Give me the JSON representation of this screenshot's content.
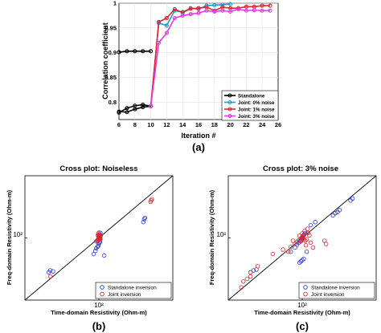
{
  "panels": {
    "a": {
      "label": "(a)"
    },
    "b": {
      "label": "(b)"
    },
    "c": {
      "label": "(c)"
    }
  },
  "chart_data": [
    {
      "type": "line",
      "title": "",
      "xlabel": "Iteration #",
      "ylabel": "Correlation coefficient",
      "xlim": [
        6,
        26
      ],
      "ylim": [
        0.765,
        1.0
      ],
      "xticks": [
        6,
        8,
        10,
        12,
        14,
        16,
        18,
        20,
        22,
        24,
        26
      ],
      "yticks": [
        0.8,
        0.85,
        0.9,
        0.95,
        1
      ],
      "ytick_labels": [
        "0.8",
        "0.85",
        "0.9",
        "0.95",
        "1"
      ],
      "grid": true,
      "legend_position": "bottom-right",
      "series": [
        {
          "name": "Standalone",
          "color": "#000000",
          "x": [
            6,
            7,
            8,
            9,
            10
          ],
          "y": [
            0.901,
            0.903,
            0.903,
            0.903,
            0.903
          ]
        },
        {
          "name": "",
          "color": "#000000",
          "x": [
            6,
            7,
            8,
            9,
            10
          ],
          "y": [
            0.781,
            0.78,
            0.786,
            0.79,
            0.792
          ]
        },
        {
          "name": "",
          "color": "#000000",
          "x": [
            6,
            7,
            8,
            9,
            10
          ],
          "y": [
            0.779,
            0.788,
            0.793,
            0.795,
            0.792
          ]
        },
        {
          "name": "Joint: 0% noise",
          "color": "#1f9ed1",
          "x": [
            10,
            11,
            12,
            13,
            14,
            15,
            16,
            17,
            18,
            19,
            20
          ],
          "y": [
            0.792,
            0.96,
            0.955,
            0.985,
            0.982,
            0.99,
            0.988,
            0.995,
            0.996,
            0.997,
            0.998
          ]
        },
        {
          "name": "Joint: 1% noise",
          "color": "#e0262c",
          "x": [
            10,
            11,
            12,
            13,
            14,
            15,
            16,
            17,
            18,
            19,
            20,
            21,
            22,
            23,
            24,
            25
          ],
          "y": [
            0.792,
            0.962,
            0.97,
            0.988,
            0.981,
            0.989,
            0.99,
            0.992,
            0.985,
            0.992,
            0.99,
            0.99,
            0.993,
            0.993,
            0.995,
            0.995
          ]
        },
        {
          "name": "Joint: 3% noise",
          "color": "#e837e8",
          "x": [
            10,
            11,
            12,
            13,
            14,
            15,
            16,
            17,
            18,
            19,
            20,
            21,
            22,
            23,
            24,
            25
          ],
          "y": [
            0.792,
            0.92,
            0.94,
            0.97,
            0.975,
            0.978,
            0.98,
            0.985,
            0.983,
            0.985,
            0.983,
            0.988,
            0.985,
            0.986,
            0.985,
            0.985
          ]
        }
      ]
    },
    {
      "type": "scatter",
      "title": "Cross plot: Noiseless",
      "xlabel": "Time-domain Resistivity (Ohm-m)",
      "ylabel": "Freq-domain Resistivity (Ohm-m)",
      "log_scale": true,
      "xlim": [
        10,
        1000
      ],
      "ylim": [
        10,
        1000
      ],
      "tick_value": 100,
      "tick_label": "10²",
      "diagonal_line": true,
      "legend_position": "bottom-right",
      "series": [
        {
          "name": "Standalone inversion",
          "color": "#2a3bd8",
          "x": [
            21,
            22,
            24,
            85,
            90,
            92,
            96,
            98,
            100,
            102,
            104,
            96,
            98,
            101,
            100,
            103,
            105,
            97,
            99,
            101,
            118,
            400,
            410,
            420
          ],
          "y": [
            28,
            30,
            29,
            55,
            62,
            68,
            72,
            74,
            80,
            84,
            86,
            90,
            95,
            100,
            108,
            112,
            120,
            90,
            96,
            104,
            52,
            180,
            200,
            210
          ]
        },
        {
          "name": "Joint inversion",
          "color": "#e0262c",
          "x": [
            22,
            92,
            96,
            98,
            100,
            102,
            104,
            106,
            99,
            101,
            103,
            97,
            100,
            102,
            105,
            98,
            101,
            104,
            500,
            510,
            520
          ],
          "y": [
            24,
            88,
            92,
            96,
            100,
            98,
            104,
            108,
            102,
            106,
            94,
            110,
            112,
            100,
            96,
            118,
            122,
            98,
            380,
            400,
            420
          ]
        }
      ]
    },
    {
      "type": "scatter",
      "title": "Cross plot: 3% noise",
      "xlabel": "Time-domain Resistivity (Ohm-m)",
      "ylabel": "Freq-domain Resistivity (Ohm-m)",
      "log_scale": true,
      "xlim": [
        10,
        1000
      ],
      "ylim": [
        10,
        1000
      ],
      "tick_value": 100,
      "tick_label": "10²",
      "diagonal_line": true,
      "legend_position": "bottom-right",
      "series": [
        {
          "name": "Standalone inversion",
          "color": "#2a3bd8",
          "x": [
            20,
            22,
            24,
            70,
            80,
            85,
            90,
            95,
            98,
            100,
            102,
            104,
            106,
            110,
            92,
            96,
            100,
            105,
            115,
            130,
            150,
            260,
            280,
            300,
            320,
            450,
            480
          ],
          "y": [
            28,
            30,
            31,
            60,
            70,
            78,
            84,
            90,
            95,
            100,
            104,
            108,
            114,
            120,
            40,
            42,
            44,
            46,
            60,
            160,
            180,
            230,
            250,
            260,
            280,
            400,
            430
          ]
        },
        {
          "name": "Joint inversion",
          "color": "#e0262c",
          "x": [
            15,
            16,
            18,
            20,
            25,
            40,
            55,
            70,
            80,
            85,
            90,
            95,
            98,
            100,
            102,
            104,
            106,
            110,
            115,
            120,
            130,
            140,
            92,
            96,
            100,
            105,
            108,
            112,
            75,
            65,
            118,
            125,
            200,
            210
          ],
          "y": [
            16,
            20,
            22,
            24,
            35,
            55,
            65,
            72,
            80,
            86,
            92,
            96,
            100,
            104,
            98,
            110,
            112,
            90,
            95,
            120,
            84,
            70,
            108,
            88,
            118,
            94,
            130,
            76,
            90,
            60,
            140,
            110,
            90,
            80
          ]
        }
      ]
    }
  ]
}
